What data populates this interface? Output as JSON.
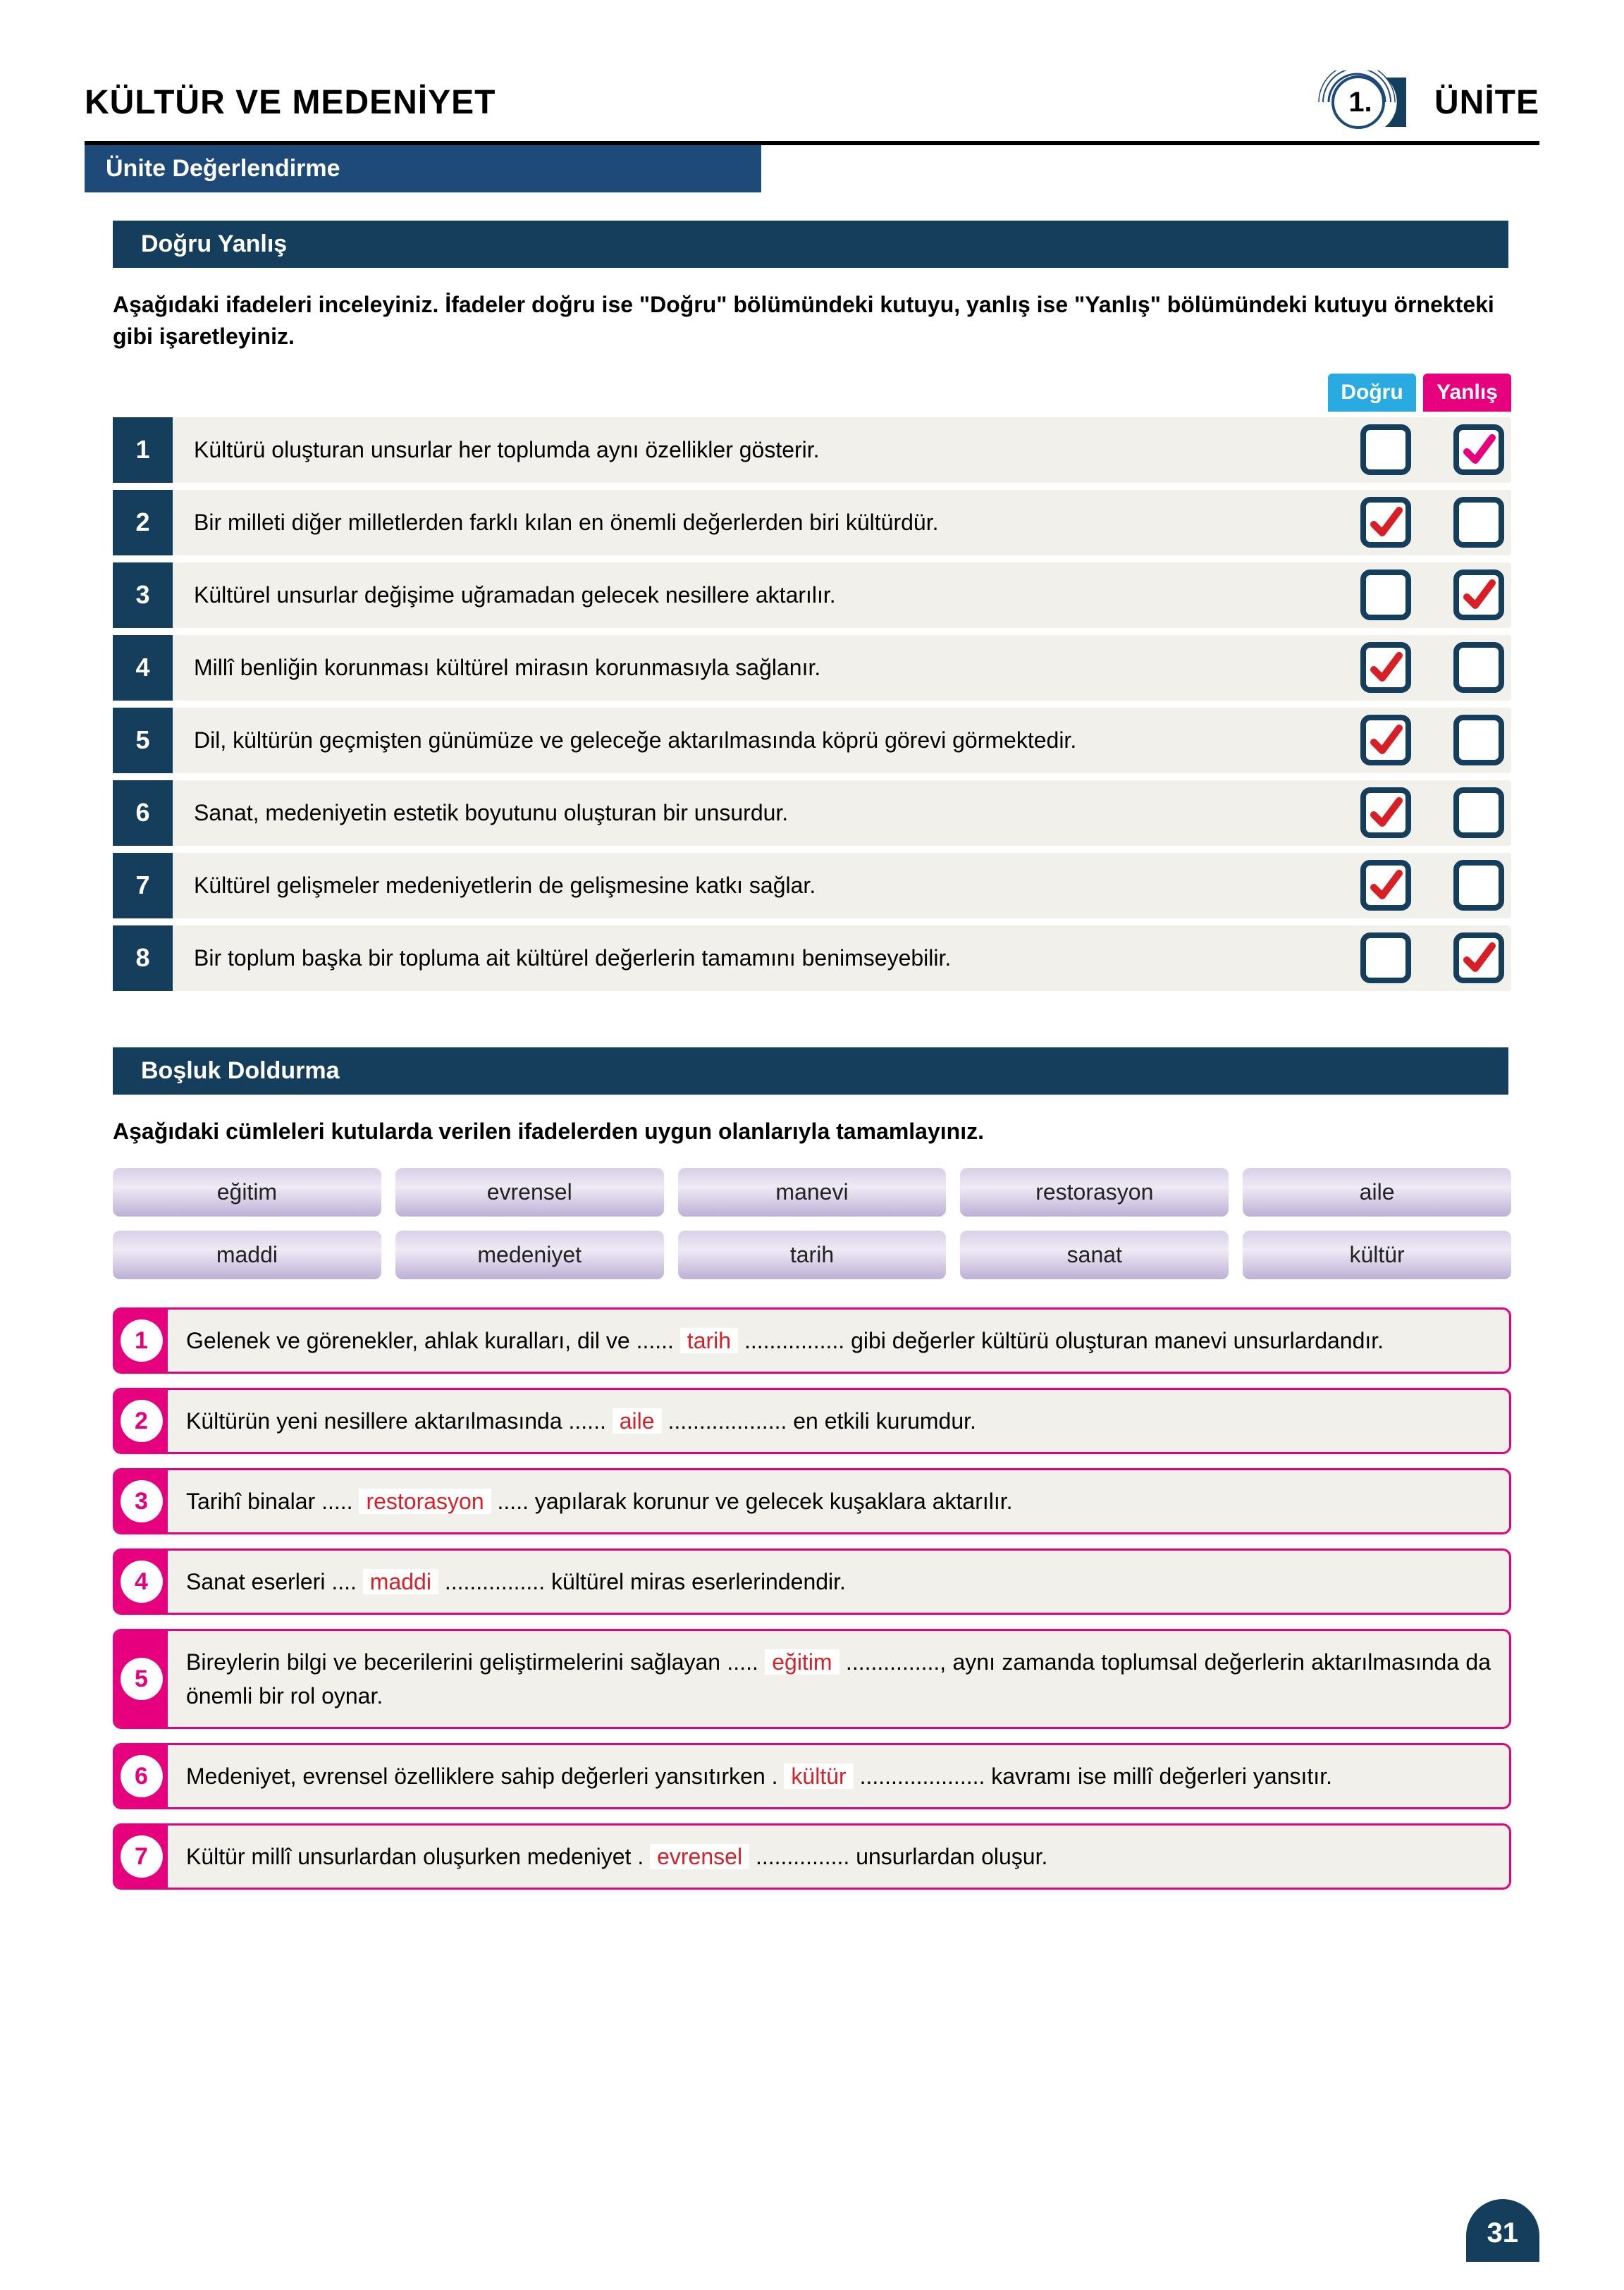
{
  "header": {
    "title": "KÜLTÜR VE MEDENİYET",
    "unit_number": "1.",
    "unit_label": "ÜNİTE",
    "subheader": "Ünite Değerlendirme"
  },
  "colors": {
    "dark_navy": "#153d5c",
    "mid_blue": "#1e4a7a",
    "true_blue": "#29abe2",
    "false_pink": "#e6007e",
    "answer_red": "#d81f26",
    "row_bg": "#f2f0ea",
    "pill_top": "#d8d0e8",
    "pill_bot": "#bdb0d6"
  },
  "true_false": {
    "section_title": "Doğru Yanlış",
    "instructions": "Aşağıdaki ifadeleri inceleyiniz. İfadeler doğru ise \"Doğru\" bölümündeki kutuyu, yanlış ise \"Yanlış\" bölümündeki kutuyu örnekteki gibi işaretleyiniz.",
    "label_true": "Doğru",
    "label_false": "Yanlış",
    "rows": [
      {
        "n": "1",
        "text": "Kültürü oluşturan unsurlar her toplumda aynı özellikler gösterir.",
        "true_checked": false,
        "false_checked": true,
        "mark_style": "pink"
      },
      {
        "n": "2",
        "text": "Bir milleti diğer milletlerden farklı kılan en önemli değerlerden biri kültürdür.",
        "true_checked": true,
        "false_checked": false,
        "mark_style": "red"
      },
      {
        "n": "3",
        "text": "Kültürel unsurlar değişime uğramadan gelecek nesillere aktarılır.",
        "true_checked": false,
        "false_checked": true,
        "mark_style": "red"
      },
      {
        "n": "4",
        "text": "Millî benliğin korunması kültürel mirasın korunmasıyla sağlanır.",
        "true_checked": true,
        "false_checked": false,
        "mark_style": "red"
      },
      {
        "n": "5",
        "text": "Dil, kültürün geçmişten günümüze ve geleceğe aktarılmasında köprü görevi görmektedir.",
        "true_checked": true,
        "false_checked": false,
        "mark_style": "red"
      },
      {
        "n": "6",
        "text": "Sanat, medeniyetin estetik boyutunu oluşturan bir unsurdur.",
        "true_checked": true,
        "false_checked": false,
        "mark_style": "red"
      },
      {
        "n": "7",
        "text": "Kültürel gelişmeler medeniyetlerin de gelişmesine katkı sağlar.",
        "true_checked": true,
        "false_checked": false,
        "mark_style": "red"
      },
      {
        "n": "8",
        "text": "Bir toplum başka bir topluma ait kültürel değerlerin tamamını benimseyebilir.",
        "true_checked": false,
        "false_checked": true,
        "mark_style": "red"
      }
    ]
  },
  "fill_blank": {
    "section_title": "Boşluk Doldurma",
    "instructions": "Aşağıdaki cümleleri kutularda verilen ifadelerden uygun olanlarıyla tamamlayınız.",
    "word_bank": [
      "eğitim",
      "evrensel",
      "manevi",
      "restorasyon",
      "aile",
      "maddi",
      "medeniyet",
      "tarih",
      "sanat",
      "kültür"
    ],
    "rows": [
      {
        "n": "1",
        "pre": "Gelenek ve görenekler, ahlak kuralları, dil ve ......",
        "answer": "tarih",
        "post": "................ gibi değerler kültürü oluşturan manevi unsurlardandır."
      },
      {
        "n": "2",
        "pre": "Kültürün yeni nesillere aktarılmasında ......",
        "answer": "aile",
        "post": "................... en etkili kurumdur."
      },
      {
        "n": "3",
        "pre": "Tarihî binalar  .....",
        "answer": "restorasyon",
        "post": "..... yapılarak korunur ve gelecek kuşaklara aktarılır."
      },
      {
        "n": "4",
        "pre": "Sanat eserleri ....",
        "answer": "maddi",
        "post": "................ kültürel miras eserlerindendir."
      },
      {
        "n": "5",
        "pre": "Bireylerin bilgi ve becerilerini geliştirmelerini sağlayan .....",
        "answer": "eğitim",
        "post": "..............., aynı zamanda toplumsal değerlerin aktarılmasında da önemli bir rol oynar."
      },
      {
        "n": "6",
        "pre": "Medeniyet, evrensel özelliklere sahip değerleri yansıtırken .",
        "answer": "kültür",
        "post": ".................... kavramı ise millî değerleri yansıtır."
      },
      {
        "n": "7",
        "pre": "Kültür millî unsurlardan oluşurken medeniyet .",
        "answer": "evrensel",
        "post": "............... unsurlardan oluşur."
      }
    ]
  },
  "page_number": "31"
}
